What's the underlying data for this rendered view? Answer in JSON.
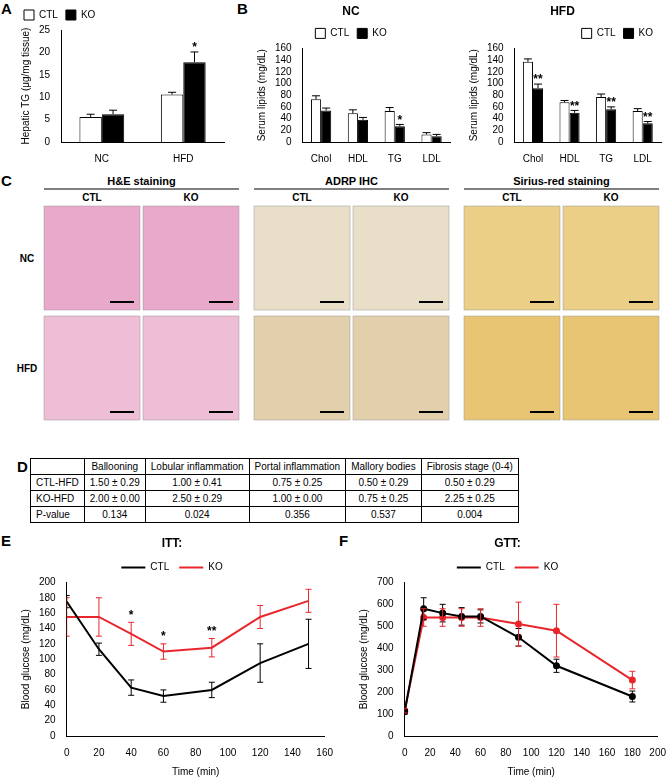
{
  "chart_data": [
    {
      "panel": "A",
      "type": "bar",
      "categories": [
        "NC",
        "HFD"
      ],
      "y_label": "Hepatic TG (μg/mg tissue)",
      "ylim": [
        0,
        25
      ],
      "yticks": [
        0,
        5,
        10,
        15,
        20,
        25
      ],
      "grid": false,
      "legend": "upper left",
      "series": [
        {
          "name": "CTL",
          "color": "#ffffff",
          "values": [
            5.6,
            10.6
          ],
          "errors": [
            0.6,
            0.5
          ]
        },
        {
          "name": "KO",
          "color": "#000000",
          "values": [
            6.2,
            17.8
          ],
          "errors": [
            0.9,
            2.3
          ],
          "significance": [
            null,
            "*"
          ]
        }
      ]
    },
    {
      "panel": "B",
      "type": "bar",
      "title": "NC",
      "categories": [
        "Chol",
        "HDL",
        "TG",
        "LDL"
      ],
      "y_label": "Serum lipids (mg/dL)",
      "ylim": [
        0,
        160
      ],
      "yticks": [
        0,
        20,
        40,
        60,
        80,
        100,
        120,
        140,
        160
      ],
      "grid": false,
      "legend": "upper center",
      "series": [
        {
          "name": "CTL",
          "color": "#ffffff",
          "values": [
            73,
            49,
            53,
            13
          ],
          "errors": [
            6,
            6,
            6,
            3
          ]
        },
        {
          "name": "KO",
          "color": "#000000",
          "values": [
            54,
            38,
            27,
            10
          ],
          "errors": [
            4,
            4,
            3,
            3
          ],
          "significance": [
            null,
            null,
            "*",
            null
          ]
        }
      ]
    },
    {
      "type": "bar",
      "title": "HFD",
      "categories": [
        "Chol",
        "HDL",
        "TG",
        "LDL"
      ],
      "y_label": "Serum lipids (mg/dL)",
      "ylim": [
        0,
        160
      ],
      "yticks": [
        0,
        20,
        40,
        60,
        80,
        100,
        120,
        140,
        160
      ],
      "grid": false,
      "legend": "upper right",
      "series": [
        {
          "name": "CTL",
          "color": "#ffffff",
          "values": [
            137,
            68,
            77,
            53
          ],
          "errors": [
            5,
            3,
            5,
            4
          ]
        },
        {
          "name": "KO",
          "color": "#000000",
          "values": [
            92,
            50,
            56,
            32
          ],
          "errors": [
            7,
            4,
            4,
            3
          ],
          "significance": [
            "**",
            "**",
            "**",
            "**"
          ]
        }
      ]
    },
    {
      "panel": "E",
      "type": "line",
      "title": "ITT:",
      "x_label": "Time (min)",
      "y_label": "Blood glucose (mg/dL)",
      "xlim": [
        0,
        160
      ],
      "xticks": [
        0,
        20,
        40,
        60,
        80,
        100,
        120,
        140,
        160
      ],
      "ylim": [
        0,
        200
      ],
      "yticks": [
        0,
        20,
        40,
        60,
        80,
        100,
        120,
        140,
        160,
        180,
        200
      ],
      "grid": false,
      "legend": "upper center",
      "series": [
        {
          "name": "CTL",
          "color": "#000000",
          "marker": "none",
          "line_style": "solid",
          "x": [
            0,
            20,
            40,
            60,
            90,
            120,
            150
          ],
          "values": [
            175,
            113,
            63,
            52,
            60,
            95,
            120
          ],
          "errors": [
            8,
            8,
            10,
            8,
            10,
            25,
            32
          ]
        },
        {
          "name": "KO",
          "color": "#e8262b",
          "marker": "none",
          "line_style": "solid",
          "x": [
            0,
            20,
            40,
            60,
            90,
            120,
            150
          ],
          "values": [
            155,
            155,
            133,
            110,
            115,
            155,
            176
          ],
          "errors": [
            25,
            25,
            15,
            10,
            12,
            15,
            15
          ]
        }
      ],
      "annotations": [
        {
          "x": 40,
          "text": "*"
        },
        {
          "x": 60,
          "text": "*"
        },
        {
          "x": 90,
          "text": "**"
        }
      ]
    },
    {
      "panel": "F",
      "type": "line",
      "title": "GTT:",
      "x_label": "Time (min)",
      "y_label": "Blood glucose (mg/dL)",
      "xlim": [
        0,
        200
      ],
      "xticks": [
        0,
        20,
        40,
        60,
        80,
        100,
        120,
        140,
        160,
        180,
        200
      ],
      "ylim": [
        0,
        700
      ],
      "yticks": [
        0,
        100,
        200,
        300,
        400,
        500,
        600,
        700
      ],
      "grid": false,
      "legend": "upper center",
      "series": [
        {
          "name": "CTL",
          "color": "#000000",
          "marker": "circle",
          "line_style": "solid",
          "x": [
            0,
            15,
            30,
            45,
            60,
            90,
            120,
            180
          ],
          "values": [
            110,
            580,
            560,
            545,
            545,
            450,
            320,
            180
          ],
          "errors": [
            10,
            50,
            40,
            40,
            30,
            40,
            30,
            25
          ]
        },
        {
          "name": "KO",
          "color": "#e8262b",
          "marker": "circle",
          "line_style": "solid",
          "x": [
            0,
            15,
            30,
            45,
            60,
            90,
            120,
            180
          ],
          "values": [
            115,
            540,
            540,
            540,
            540,
            510,
            480,
            255
          ],
          "errors": [
            10,
            40,
            40,
            40,
            40,
            100,
            120,
            40
          ]
        }
      ]
    }
  ],
  "histology": {
    "panel": "C",
    "stains": [
      "H&E staining",
      "ADRP IHC",
      "Sirius-red staining"
    ],
    "columns": [
      "CTL",
      "KO"
    ],
    "rows": [
      "NC",
      "HFD"
    ]
  },
  "table": {
    "panel": "D",
    "columns": [
      "Ballooning",
      "Lobular inflammation",
      "Portal inflammation",
      "Mallory bodies",
      "Fibrosis stage (0-4)"
    ],
    "rows": [
      {
        "label": "CTL-HFD",
        "cells": [
          "1.50 ± 0.29",
          "1.00 ± 0.41",
          "0.75 ± 0.25",
          "0.50 ± 0.29",
          "0.50 ± 0.29"
        ]
      },
      {
        "label": "KO-HFD",
        "cells": [
          "2.00 ± 0.00",
          "2.50 ± 0.29",
          "1.00 ± 0.00",
          "0.75 ± 0.25",
          "2.25 ± 0.25"
        ]
      },
      {
        "label": "P-value",
        "cells": [
          "0.134",
          "0.024",
          "0.356",
          "0.537",
          "0.004"
        ]
      }
    ]
  }
}
